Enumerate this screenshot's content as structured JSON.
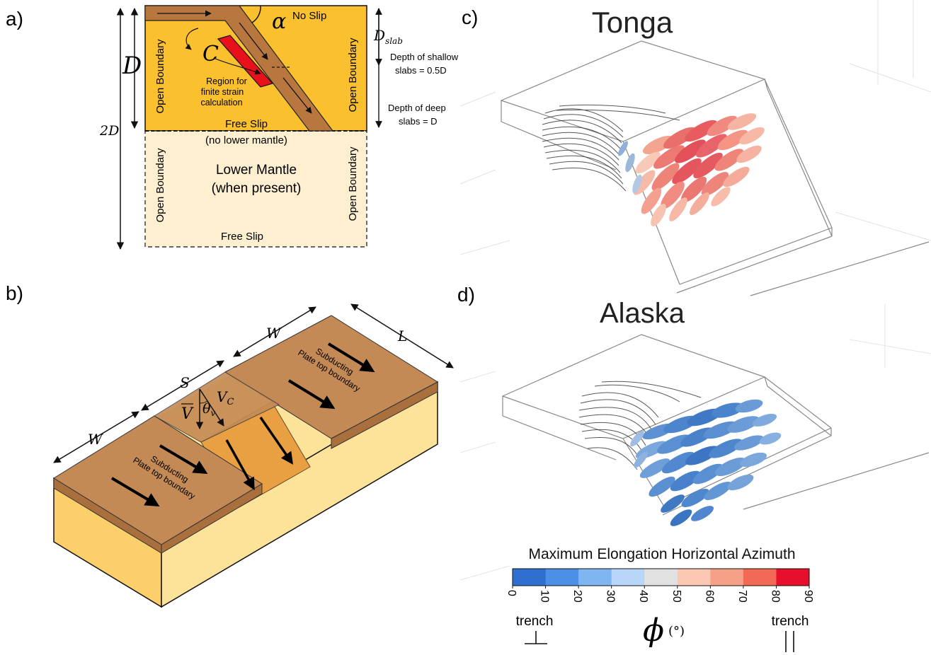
{
  "panels": {
    "a": {
      "letter": "a)",
      "alpha": "α",
      "no_slip": "No Slip",
      "d": "D",
      "two_d": "2D",
      "d_slab": "D",
      "d_slab_sub": "slab",
      "c_symbol": "C",
      "region_line1": "Region for",
      "region_line2": "finite strain",
      "region_line3": "calculation",
      "shallow_line1": "Depth of shallow",
      "shallow_line2": "slabs = 0.5D",
      "deep_line1": "Depth of deep",
      "deep_line2": "slabs = D",
      "open_boundary": "Open Boundary",
      "free_slip": "Free Slip",
      "no_lower_mantle": "(no lower mantle)",
      "lower_mantle_line1": "Lower Mantle",
      "lower_mantle_line2": "(when present)"
    },
    "b": {
      "letter": "b)",
      "w": "W",
      "s": "S",
      "l": "L",
      "v": "V",
      "vc": "V",
      "vc_sub": "C",
      "theta": "θ",
      "theta_sub": "v",
      "plate_line1": "Subducting",
      "plate_line2": "Plate top boundary"
    },
    "c": {
      "letter": "c)",
      "title": "Tonga"
    },
    "d": {
      "letter": "d)",
      "title": "Alaska"
    }
  },
  "colorbar": {
    "title": "Maximum Elongation Horizontal Azimuth",
    "ticks": [
      "0",
      "10",
      "20",
      "30",
      "40",
      "50",
      "60",
      "70",
      "80",
      "90"
    ],
    "colors": [
      "#2e6fd0",
      "#4b90e6",
      "#7fb6f2",
      "#b8d6f7",
      "#e1e1e1",
      "#fac8b3",
      "#f7a088",
      "#f26a56",
      "#e6102c"
    ],
    "left_label": "trench",
    "right_label": "trench",
    "phi": "ϕ",
    "unit": "(°)"
  },
  "colors": {
    "upper_mantle": "#fbc02d",
    "lower_mantle": "#fdefcf",
    "slab": "#b8773f",
    "region": "#e8101a",
    "box_side": "#fccf6b",
    "plate_top": "#c48a55"
  }
}
